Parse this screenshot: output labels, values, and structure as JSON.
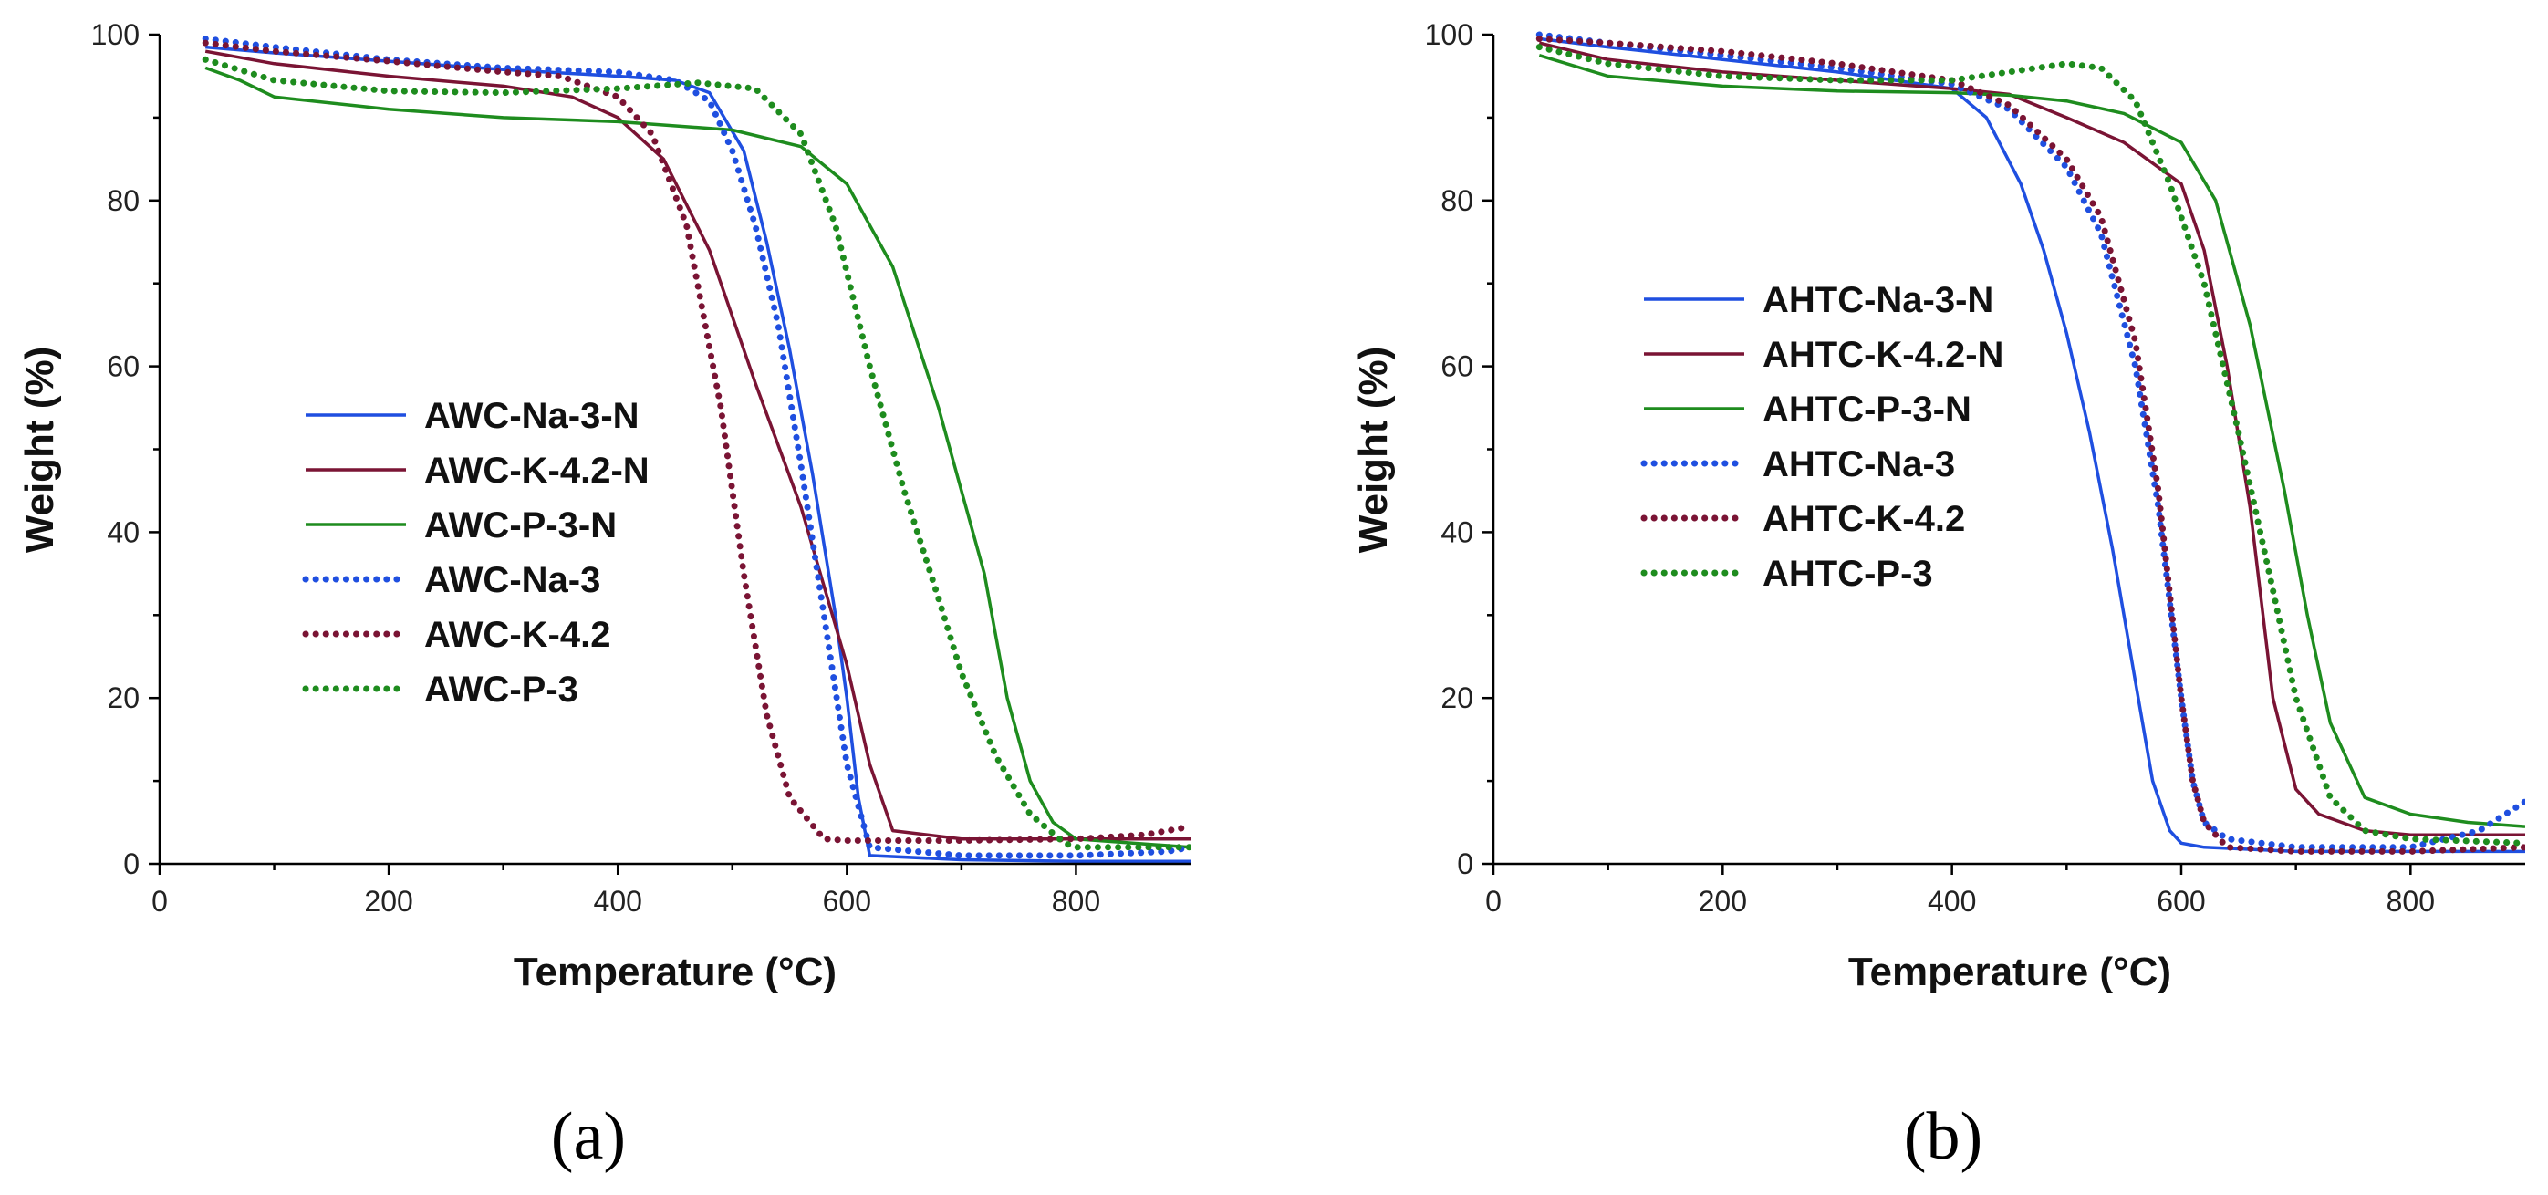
{
  "chart_data": [
    {
      "type": "line",
      "panel_label": "(a)",
      "xlabel": "Temperature (°C)",
      "ylabel": "Weight (%)",
      "xlim": [
        0,
        900
      ],
      "ylim": [
        0,
        100
      ],
      "xticks": [
        0,
        200,
        400,
        600,
        800
      ],
      "yticks": [
        0,
        20,
        40,
        60,
        80,
        100
      ],
      "grid": false,
      "legend_position": "center-left",
      "series": [
        {
          "name": "AWC-Na-3-N",
          "color": "#1f4fe0",
          "style": "solid",
          "x": [
            40,
            100,
            200,
            300,
            400,
            450,
            480,
            510,
            530,
            550,
            570,
            590,
            600,
            610,
            620,
            700,
            800,
            900
          ],
          "y": [
            98.5,
            97.8,
            96.8,
            95.8,
            95.0,
            94.5,
            93.0,
            86,
            75,
            62,
            47,
            30,
            20,
            8,
            1,
            0.5,
            0.3,
            0.3
          ]
        },
        {
          "name": "AWC-K-4.2-N",
          "color": "#7a1434",
          "style": "solid",
          "x": [
            40,
            100,
            200,
            300,
            360,
            400,
            440,
            480,
            520,
            560,
            600,
            620,
            640,
            700,
            800,
            900
          ],
          "y": [
            98,
            96.5,
            95,
            93.8,
            92.5,
            90,
            85,
            74,
            58,
            43,
            24,
            12,
            4,
            3,
            3,
            3
          ]
        },
        {
          "name": "AWC-P-3-N",
          "color": "#1e8c1e",
          "style": "solid",
          "x": [
            40,
            70,
            100,
            200,
            300,
            400,
            500,
            560,
            600,
            640,
            680,
            700,
            720,
            740,
            760,
            780,
            800,
            900
          ],
          "y": [
            96,
            94.5,
            92.5,
            91,
            90,
            89.5,
            88.5,
            86.5,
            82,
            72,
            55,
            45,
            35,
            20,
            10,
            5,
            3,
            2
          ]
        },
        {
          "name": "AWC-Na-3",
          "color": "#1f4fe0",
          "style": "dotted",
          "x": [
            40,
            100,
            200,
            300,
            400,
            450,
            480,
            500,
            520,
            540,
            560,
            580,
            600,
            620,
            700,
            800,
            880,
            900
          ],
          "y": [
            99.5,
            98.5,
            97,
            96,
            95.5,
            94.5,
            92,
            86,
            77,
            65,
            48,
            30,
            12,
            2,
            1,
            1,
            1.5,
            2
          ]
        },
        {
          "name": "AWC-K-4.2",
          "color": "#7a1434",
          "style": "dotted",
          "x": [
            40,
            100,
            200,
            300,
            350,
            400,
            430,
            460,
            490,
            510,
            530,
            550,
            580,
            600,
            700,
            800,
            860,
            900
          ],
          "y": [
            99,
            98,
            96.8,
            95.5,
            95,
            92.5,
            88,
            77,
            55,
            35,
            18,
            8,
            3,
            2.8,
            2.8,
            3,
            3.5,
            4.5
          ]
        },
        {
          "name": "AWC-P-3",
          "color": "#1e8c1e",
          "style": "dotted",
          "x": [
            40,
            100,
            200,
            300,
            400,
            470,
            520,
            560,
            590,
            620,
            650,
            680,
            700,
            730,
            760,
            790,
            800,
            900
          ],
          "y": [
            97,
            94.5,
            93.2,
            93,
            93.5,
            94.2,
            93.5,
            88,
            77,
            60,
            45,
            32,
            23,
            13,
            6,
            2.5,
            2,
            2
          ]
        }
      ]
    },
    {
      "type": "line",
      "panel_label": "(b)",
      "xlabel": "Temperature (°C)",
      "ylabel": "Weight (%)",
      "xlim": [
        0,
        900
      ],
      "ylim": [
        0,
        100
      ],
      "xticks": [
        0,
        200,
        400,
        600,
        800
      ],
      "yticks": [
        0,
        20,
        40,
        60,
        80,
        100
      ],
      "grid": false,
      "legend_position": "upper-left",
      "series": [
        {
          "name": "AHTC-Na-3-N",
          "color": "#1f4fe0",
          "style": "solid",
          "x": [
            40,
            100,
            200,
            300,
            400,
            430,
            460,
            480,
            500,
            520,
            540,
            560,
            575,
            590,
            600,
            620,
            700,
            800,
            900
          ],
          "y": [
            99.5,
            98.5,
            97,
            95.5,
            93.5,
            90,
            82,
            74,
            64,
            52,
            38,
            22,
            10,
            4,
            2.5,
            2,
            1.5,
            1.5,
            1.5
          ]
        },
        {
          "name": "AHTC-K-4.2-N",
          "color": "#7a1434",
          "style": "solid",
          "x": [
            40,
            100,
            200,
            300,
            400,
            450,
            500,
            550,
            600,
            620,
            640,
            660,
            680,
            700,
            720,
            760,
            800,
            900
          ],
          "y": [
            99,
            97,
            95.5,
            94.5,
            93.5,
            92.8,
            90,
            87,
            82,
            74,
            60,
            43,
            20,
            9,
            6,
            4,
            3.5,
            3.5
          ]
        },
        {
          "name": "AHTC-P-3-N",
          "color": "#1e8c1e",
          "style": "solid",
          "x": [
            40,
            100,
            200,
            300,
            400,
            450,
            500,
            550,
            600,
            630,
            660,
            690,
            710,
            730,
            760,
            800,
            850,
            900
          ],
          "y": [
            97.5,
            95,
            93.8,
            93.2,
            93,
            92.7,
            92,
            90.5,
            87,
            80,
            65,
            45,
            30,
            17,
            8,
            6,
            5,
            4.5
          ]
        },
        {
          "name": "AHTC-Na-3",
          "color": "#1f4fe0",
          "style": "dotted",
          "x": [
            40,
            100,
            200,
            300,
            400,
            450,
            500,
            530,
            560,
            580,
            600,
            610,
            620,
            640,
            700,
            800,
            860,
            900
          ],
          "y": [
            100,
            99,
            97.5,
            96,
            94,
            91,
            84,
            76,
            60,
            43,
            20,
            10,
            5,
            3,
            2,
            2,
            4,
            7.5
          ]
        },
        {
          "name": "AHTC-K-4.2",
          "color": "#7a1434",
          "style": "dotted",
          "x": [
            40,
            100,
            200,
            300,
            400,
            450,
            500,
            530,
            560,
            580,
            600,
            610,
            620,
            640,
            700,
            800,
            900
          ],
          "y": [
            99.5,
            99,
            98,
            96.5,
            94.5,
            91.5,
            85,
            78,
            63,
            45,
            20,
            10,
            5,
            2,
            1.5,
            1.5,
            2
          ]
        },
        {
          "name": "AHTC-P-3",
          "color": "#1e8c1e",
          "style": "dotted",
          "x": [
            40,
            100,
            200,
            300,
            400,
            450,
            500,
            530,
            560,
            590,
            620,
            650,
            680,
            700,
            730,
            760,
            800,
            900
          ],
          "y": [
            98.5,
            96.5,
            95,
            94.5,
            94.5,
            95.5,
            96.5,
            96,
            92,
            82,
            70,
            52,
            33,
            20,
            8,
            4,
            3,
            2.5
          ]
        }
      ]
    }
  ]
}
